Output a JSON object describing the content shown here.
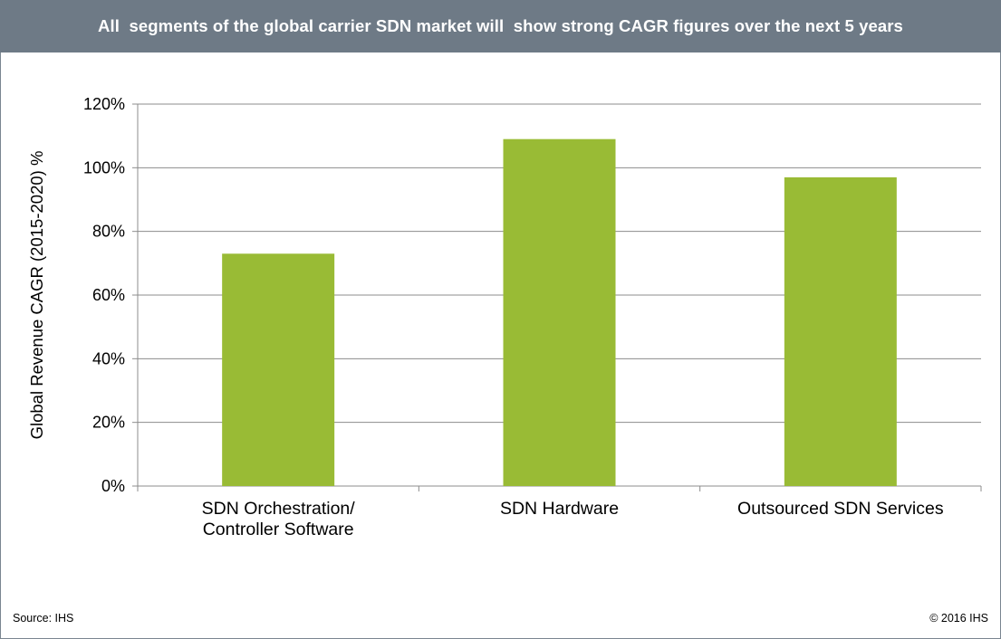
{
  "header": {
    "title": "All  segments of the global carrier SDN market will  show strong CAGR figures over the next 5 years"
  },
  "footer": {
    "source": "Source: IHS",
    "copyright": "© 2016 IHS"
  },
  "colors": {
    "header_bg": "#6e7a86",
    "bar": "#99bb35",
    "grid": "#8c8c8c"
  },
  "chart_data": {
    "type": "bar",
    "categories": [
      [
        "SDN Orchestration/",
        "Controller Software"
      ],
      [
        "SDN Hardware"
      ],
      [
        "Outsourced SDN Services"
      ]
    ],
    "values": [
      73,
      109,
      97
    ],
    "ylabel": "Global Revenue CAGR (2015-2020) %",
    "ylim": [
      0,
      120
    ],
    "yticks": [
      0,
      20,
      40,
      60,
      80,
      100,
      120
    ],
    "ytick_labels": [
      "0%",
      "20%",
      "40%",
      "60%",
      "80%",
      "100%",
      "120%"
    ],
    "grid": true,
    "legend": "none"
  }
}
